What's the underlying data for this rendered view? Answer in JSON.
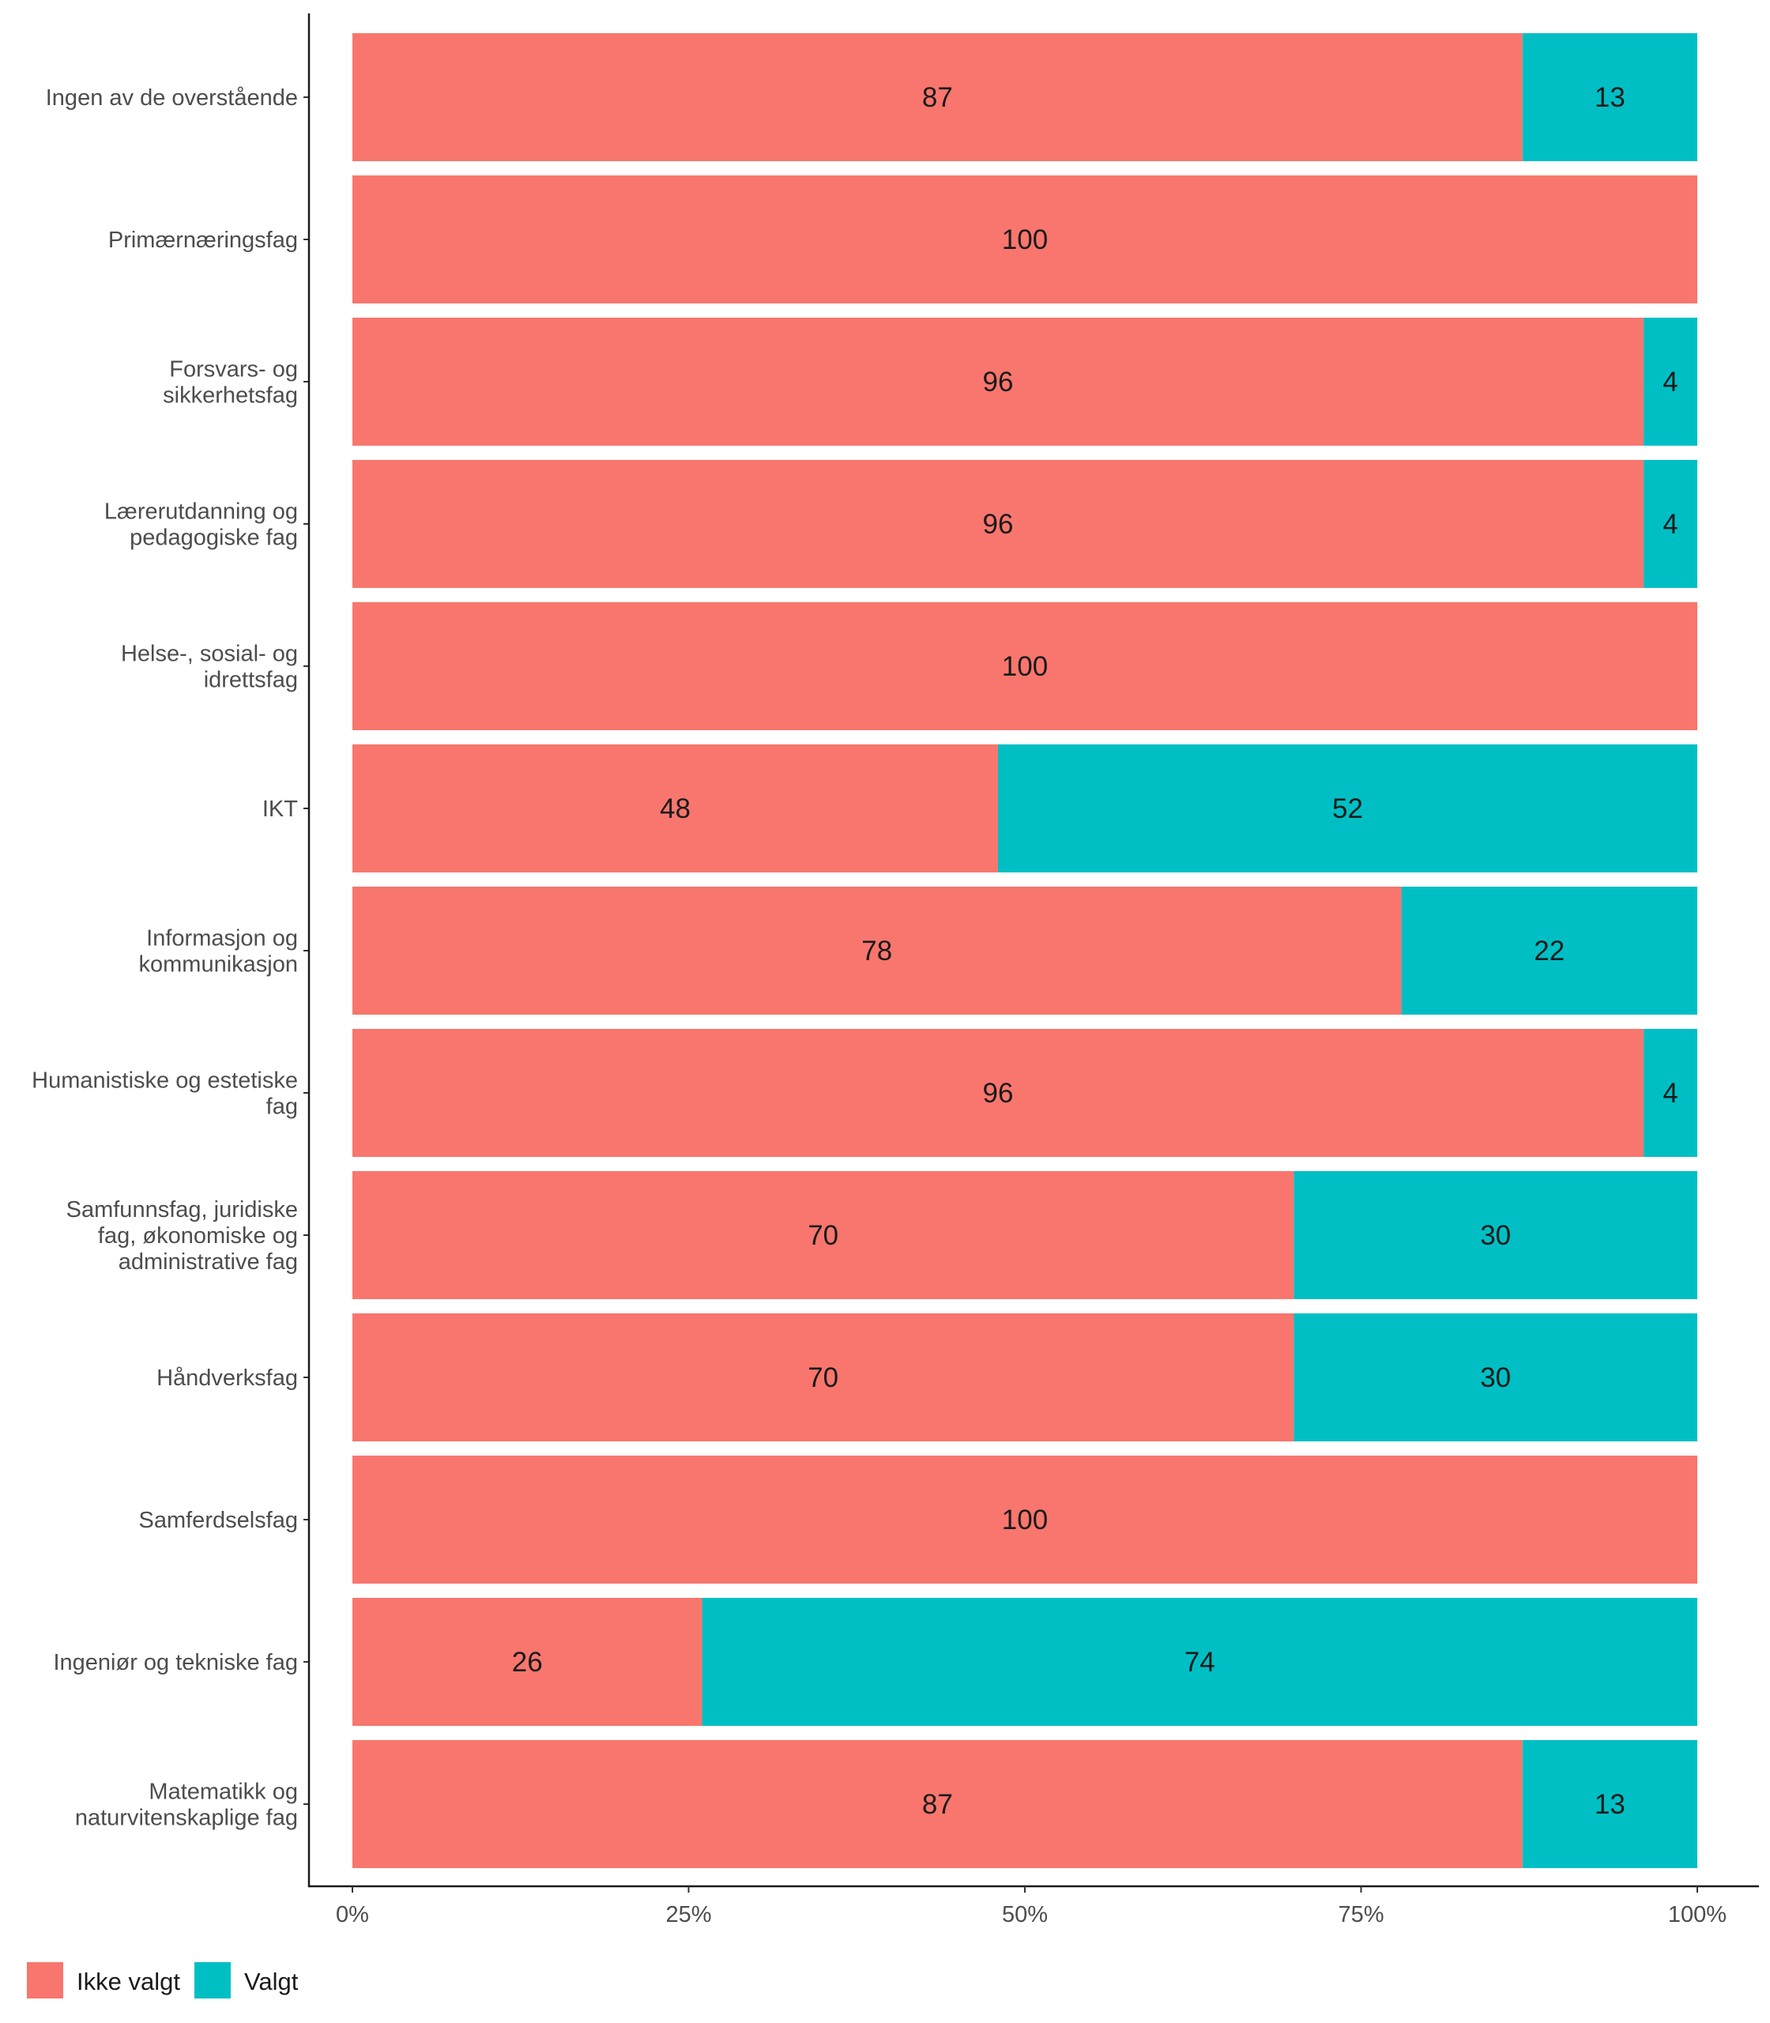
{
  "chart_data": {
    "type": "bar",
    "orientation": "horizontal",
    "stacked": true,
    "title": "",
    "xlabel": "",
    "ylabel": "",
    "xlim": [
      0,
      100
    ],
    "x_ticks": [
      "0%",
      "25%",
      "50%",
      "75%",
      "100%"
    ],
    "grid": false,
    "legend_position": "bottom-left",
    "categories": [
      [
        "Ingen av de overstående"
      ],
      [
        "Primærnæringsfag"
      ],
      [
        "Forsvars- og",
        "sikkerhetsfag"
      ],
      [
        "Lærerutdanning og",
        "pedagogiske fag"
      ],
      [
        "Helse-, sosial- og",
        "idrettsfag"
      ],
      [
        "IKT"
      ],
      [
        "Informasjon og",
        "kommunikasjon"
      ],
      [
        "Humanistiske og estetiske",
        "fag"
      ],
      [
        "Samfunnsfag, juridiske",
        "fag, økonomiske og",
        "administrative fag"
      ],
      [
        "Håndverksfag"
      ],
      [
        "Samferdselsfag"
      ],
      [
        "Ingeniør og tekniske fag"
      ],
      [
        "Matematikk og",
        "naturvitenskaplige fag"
      ]
    ],
    "series": [
      {
        "name": "Ikke valgt",
        "color": "#F8766D",
        "values": [
          87,
          100,
          96,
          96,
          100,
          48,
          78,
          96,
          70,
          70,
          100,
          26,
          87
        ]
      },
      {
        "name": "Valgt",
        "color": "#00BFC4",
        "values": [
          13,
          0,
          4,
          4,
          0,
          52,
          22,
          4,
          30,
          30,
          0,
          74,
          13
        ]
      }
    ]
  }
}
